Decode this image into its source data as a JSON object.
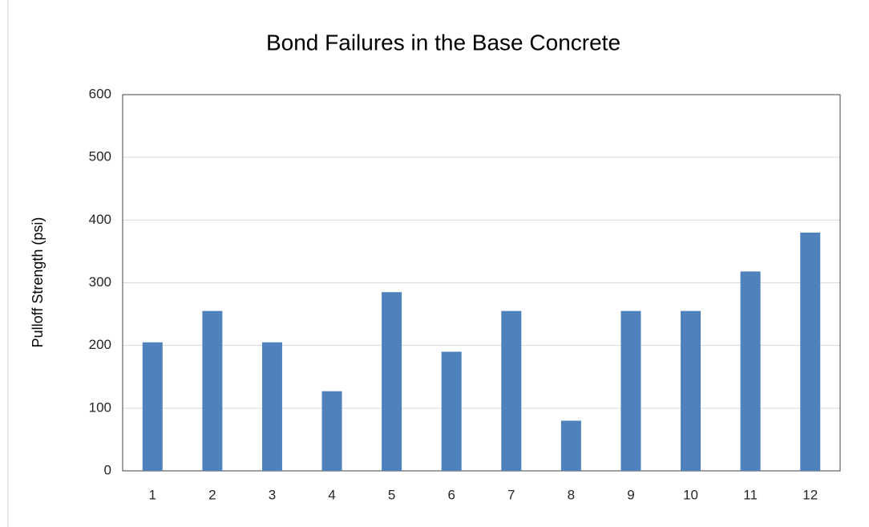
{
  "chart_data": {
    "type": "bar",
    "title": "Bond Failures in the Base Concrete",
    "y_label": "Pulloff Strength (psi)",
    "categories": [
      "1",
      "2",
      "3",
      "4",
      "5",
      "6",
      "7",
      "8",
      "9",
      "10",
      "11",
      "12"
    ],
    "values": [
      205,
      255,
      205,
      127,
      285,
      190,
      255,
      80,
      255,
      255,
      318,
      380
    ],
    "color": "#4f81bd",
    "ylim": [
      0,
      600
    ],
    "yticks": [
      0,
      100,
      200,
      300,
      400,
      500,
      600
    ],
    "grid": true
  }
}
